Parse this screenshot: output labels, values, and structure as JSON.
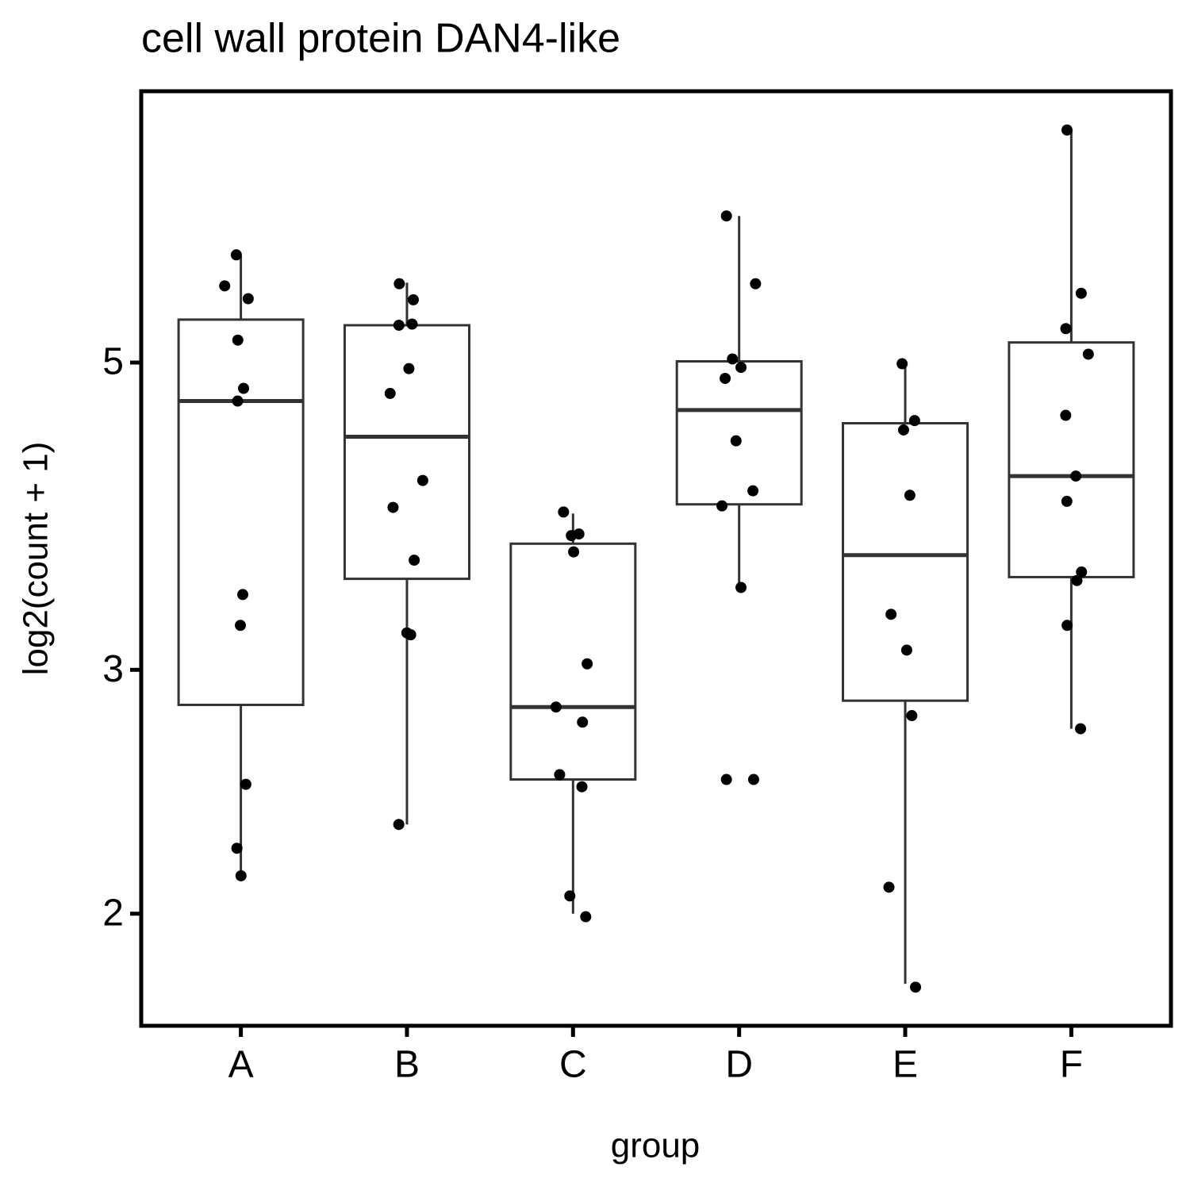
{
  "chart_data": {
    "type": "box",
    "title": "cell wall protein DAN4-like",
    "x_label": "group",
    "y_label": "log2(count + 1)",
    "categories": [
      "A",
      "B",
      "C",
      "D",
      "E",
      "F"
    ],
    "whisker_low": [
      2.13,
      2.32,
      2.0,
      3.44,
      1.78,
      2.72
    ],
    "q1": [
      2.83,
      3.49,
      2.5,
      3.95,
      2.85,
      3.5
    ],
    "median": [
      4.69,
      4.42,
      2.82,
      4.62,
      3.63,
      4.14
    ],
    "q3": [
      5.37,
      5.32,
      3.7,
      5.01,
      4.52,
      5.17
    ],
    "whisker_high": [
      5.97,
      5.71,
      3.89,
      6.38,
      4.98,
      7.36
    ],
    "points": [
      [
        5.98,
        5.68,
        5.56,
        5.19,
        4.79,
        4.69,
        3.4,
        3.23,
        2.48,
        2.23,
        2.13
      ],
      [
        5.7,
        5.55,
        5.33,
        5.32,
        4.95,
        4.75,
        4.11,
        3.93,
        3.6,
        3.19,
        3.18,
        2.32
      ],
      [
        3.9,
        3.76,
        3.75,
        3.65,
        3.03,
        2.82,
        2.75,
        2.52,
        2.47,
        2.06,
        1.99
      ],
      [
        6.38,
        5.7,
        5.03,
        4.96,
        4.87,
        4.39,
        4.04,
        3.94,
        3.44,
        2.5,
        2.5
      ],
      [
        4.99,
        4.54,
        4.47,
        4.01,
        3.29,
        3.1,
        2.78,
        2.09,
        1.77
      ],
      [
        7.36,
        5.61,
        5.29,
        5.07,
        4.58,
        4.14,
        3.97,
        3.53,
        3.48,
        3.23,
        2.72
      ]
    ],
    "log_y": true,
    "ylim": [
      1.66,
      7.85
    ],
    "yticks": [
      2,
      3,
      5
    ],
    "box_color": "#333333",
    "point_color": "#000000"
  }
}
